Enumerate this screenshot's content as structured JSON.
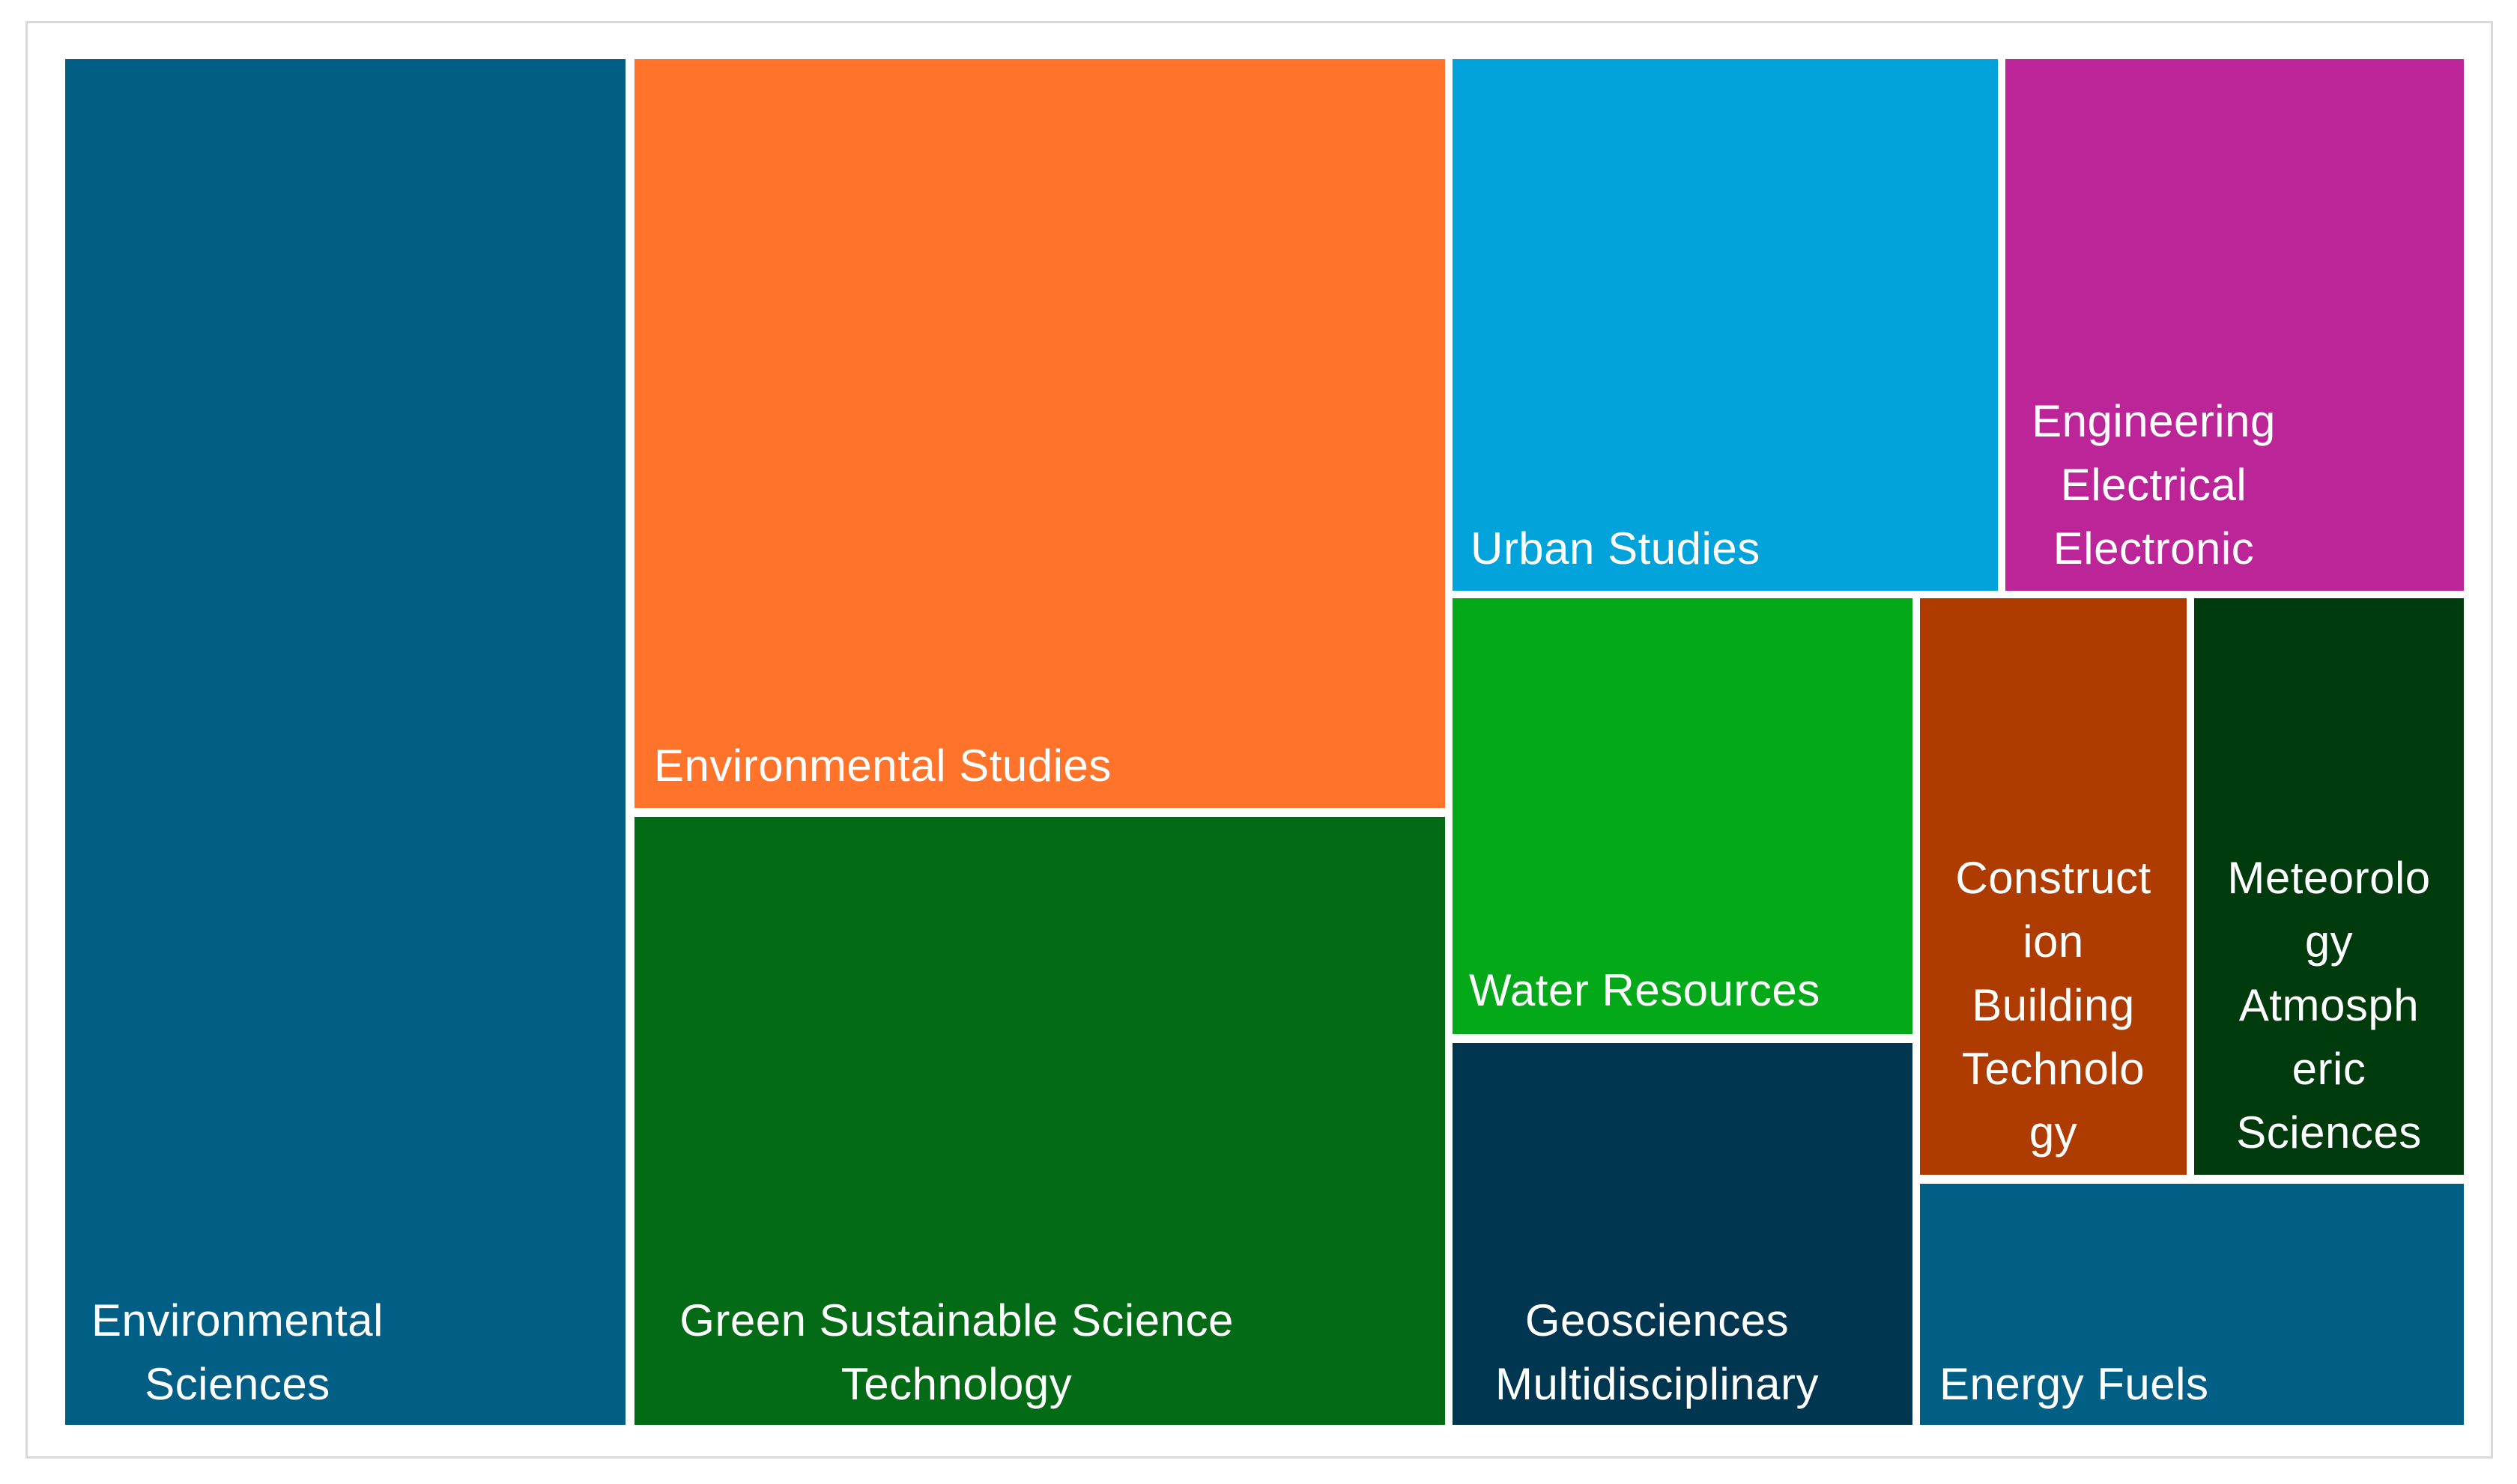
{
  "chart_data": {
    "type": "treemap",
    "title": "",
    "items": [
      {
        "id": "env-sci",
        "lines": [
          "Environmental",
          "Sciences"
        ],
        "color": "#015f86",
        "align": "middle"
      },
      {
        "id": "env-studies",
        "lines": [
          "Environmental Studies"
        ],
        "color": "#ff732a",
        "align": "start"
      },
      {
        "id": "green-sust",
        "lines": [
          "Green Sustainable Science",
          "Technology"
        ],
        "color": "#036a15",
        "align": "middle"
      },
      {
        "id": "urban",
        "lines": [
          "Urban Studies"
        ],
        "color": "#01a3da",
        "align": "start"
      },
      {
        "id": "eng-elec",
        "lines": [
          "Engineering",
          "Electrical",
          "Electronic"
        ],
        "color": "#bc2598",
        "align": "middle"
      },
      {
        "id": "water",
        "lines": [
          "Water Resources"
        ],
        "color": "#03a918",
        "align": "start"
      },
      {
        "id": "geosci",
        "lines": [
          "Geosciences",
          "Multidisciplinary"
        ],
        "color": "#003650",
        "align": "middle"
      },
      {
        "id": "construction",
        "lines": [
          "Construct",
          "ion",
          "Building",
          "Technolo",
          "gy"
        ],
        "color": "#ae3c00",
        "align": "middle"
      },
      {
        "id": "meteorology",
        "lines": [
          "Meteorolo",
          "gy",
          "Atmosph",
          "eric",
          "Sciences"
        ],
        "color": "#003b0d",
        "align": "middle"
      },
      {
        "id": "energy",
        "lines": [
          "Energy Fuels"
        ],
        "color": "#015f86",
        "align": "start"
      }
    ]
  }
}
